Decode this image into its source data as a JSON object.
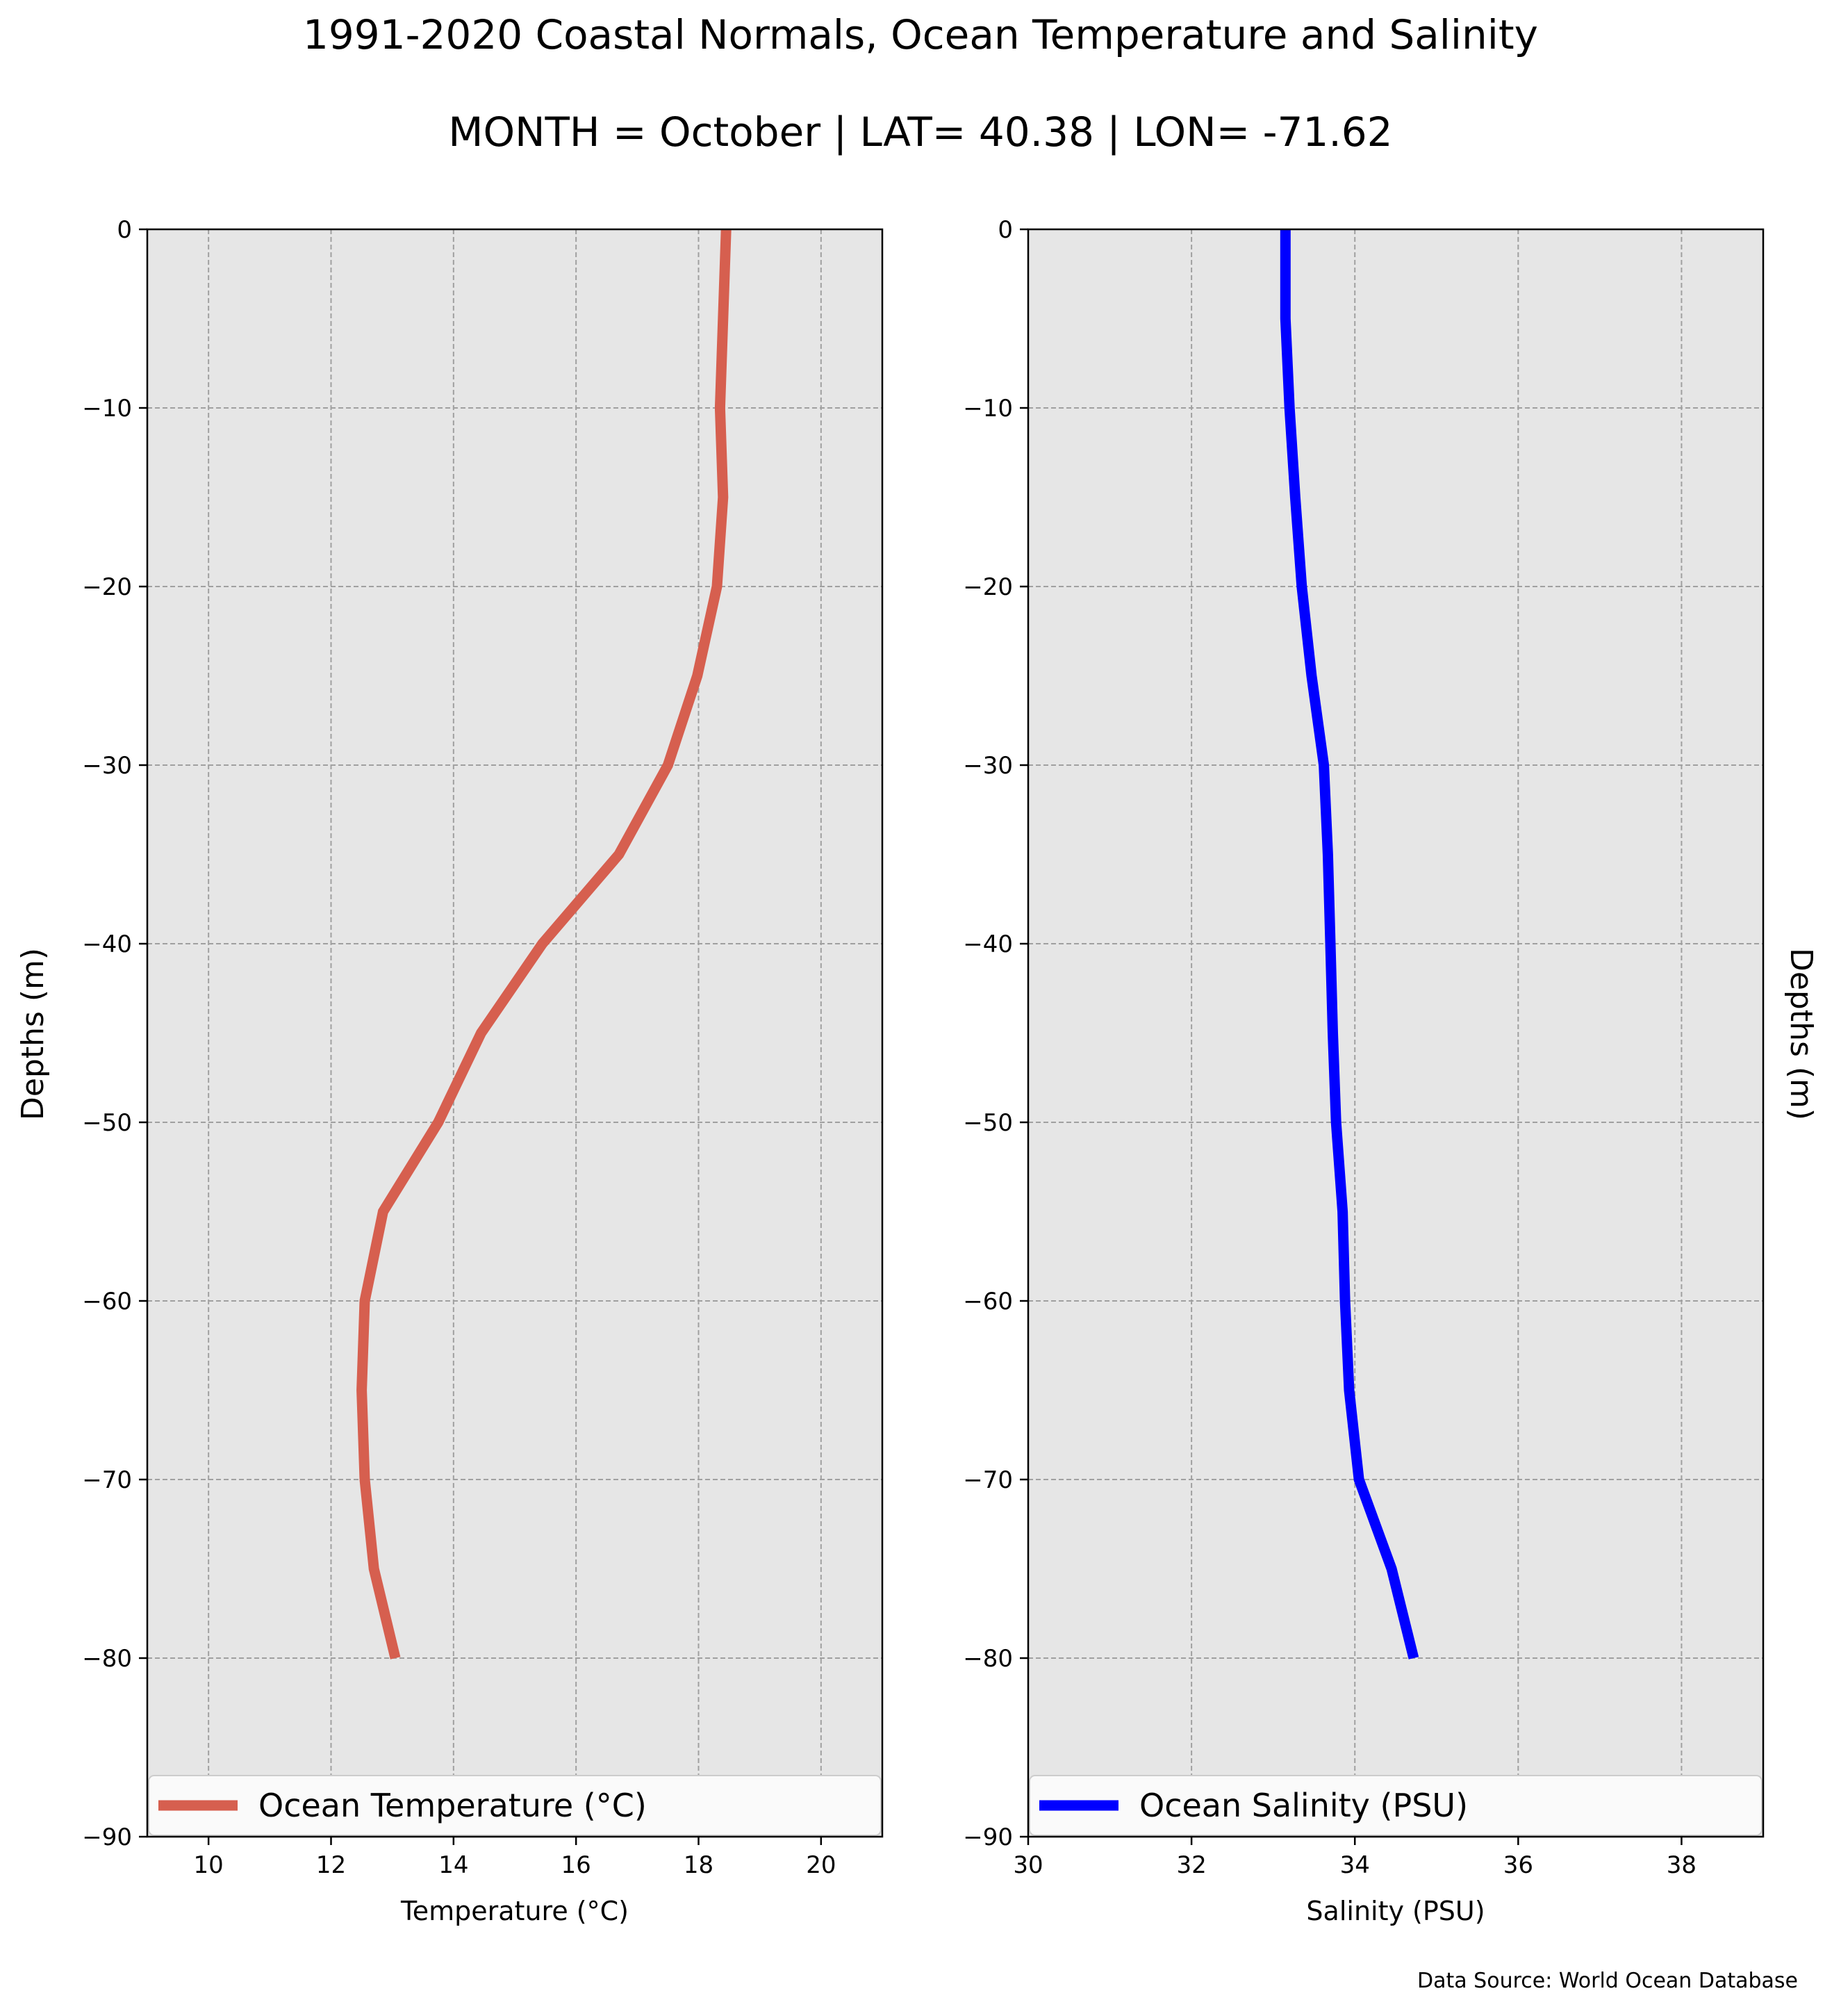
{
  "figure": {
    "title_line1": "1991-2020 Coastal Normals, Ocean Temperature and Salinity",
    "title_line2": "MONTH = October | LAT= 40.38 | LON= -71.62",
    "source": "Data Source: World Ocean Database"
  },
  "chart_data": [
    {
      "type": "line",
      "xlabel": "Temperature ($^\\circ$C)",
      "xlabel_display": "Temperature (°C)",
      "ylabel": "Depths (m)",
      "xlim": [
        9,
        21
      ],
      "ylim": [
        -90,
        0
      ],
      "xticks": [
        10,
        12,
        14,
        16,
        18,
        20
      ],
      "yticks": [
        0,
        -10,
        -20,
        -30,
        -40,
        -50,
        -60,
        -70,
        -80,
        -90
      ],
      "grid": true,
      "legend_position": "lower center",
      "background": "#e6e6e6",
      "series": [
        {
          "name": "Ocean Temperature (°C)",
          "color": "#d65f4f",
          "x": [
            18.45,
            18.4,
            18.35,
            18.4,
            18.3,
            17.98,
            17.5,
            16.7,
            15.45,
            14.45,
            13.75,
            12.85,
            12.55,
            12.5,
            12.55,
            12.7,
            13.05
          ],
          "y": [
            0,
            -5,
            -10,
            -15,
            -20,
            -25,
            -30,
            -35,
            -40,
            -45,
            -50,
            -55,
            -60,
            -65,
            -70,
            -75,
            -80
          ]
        }
      ]
    },
    {
      "type": "line",
      "xlabel": "Salinity (PSU)",
      "xlabel_display": "Salinity (PSU)",
      "ylabel": "Depths (m)",
      "xlim": [
        30,
        39
      ],
      "ylim": [
        -90,
        0
      ],
      "xticks": [
        30,
        32,
        34,
        36,
        38
      ],
      "yticks": [
        0,
        -10,
        -20,
        -30,
        -40,
        -50,
        -60,
        -70,
        -80,
        -90
      ],
      "grid": true,
      "legend_position": "lower center",
      "background": "#e6e6e6",
      "series": [
        {
          "name": "Ocean Salinity (PSU)",
          "color": "#0000ff",
          "x": [
            33.15,
            33.15,
            33.2,
            33.27,
            33.35,
            33.47,
            33.62,
            33.67,
            33.7,
            33.73,
            33.77,
            33.85,
            33.88,
            33.93,
            34.05,
            34.45,
            34.72
          ],
          "y": [
            0,
            -5,
            -10,
            -15,
            -20,
            -25,
            -30,
            -35,
            -40,
            -45,
            -50,
            -55,
            -60,
            -65,
            -70,
            -75,
            -80
          ]
        }
      ]
    }
  ]
}
